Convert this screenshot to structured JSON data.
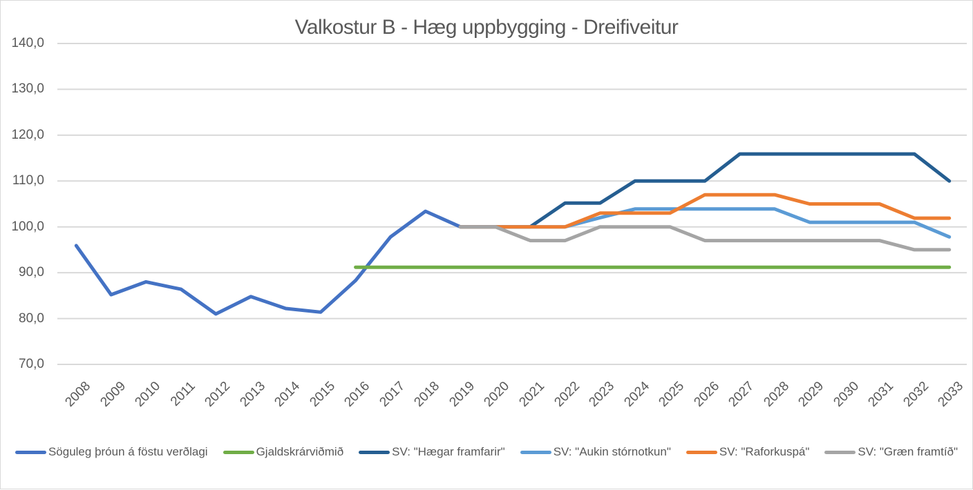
{
  "chart_data": {
    "type": "line",
    "title": "Valkostur B - Hæg uppbygging - Dreifiveitur",
    "x_categories": [
      "2008",
      "2009",
      "2010",
      "2011",
      "2012",
      "2013",
      "2014",
      "2015",
      "2016",
      "2017",
      "2018",
      "2019",
      "2020",
      "2021",
      "2022",
      "2023",
      "2024",
      "2025",
      "2026",
      "2027",
      "2028",
      "2029",
      "2030",
      "2031",
      "2032",
      "2033"
    ],
    "x_start_year": 2008,
    "y_axis": {
      "min": 70,
      "max": 140,
      "step": 10,
      "tick_labels": [
        "70,0",
        "80,0",
        "90,0",
        "100,0",
        "110,0",
        "120,0",
        "130,0",
        "140,0"
      ]
    },
    "grid": "horizontal",
    "legend_position": "bottom",
    "styles": {
      "axis_text_color": "#595959",
      "title_color": "#595959",
      "gridline_color": "#D9D9D9",
      "frame_border_color": "#D9D9D9",
      "background": "#FFFFFF"
    },
    "series": [
      {
        "name": "Söguleg þróun á föstu verðlagi",
        "color": "#4472C4",
        "start_year": 2008,
        "values": [
          95.9,
          85.2,
          88.0,
          86.4,
          81.0,
          84.8,
          82.2,
          81.4,
          88.3,
          97.8,
          103.4,
          100.0
        ]
      },
      {
        "name": "Gjaldskrárviðmið",
        "color": "#70AD47",
        "start_year": 2016,
        "values": [
          91.2,
          91.2,
          91.2,
          91.2,
          91.2,
          91.2,
          91.2,
          91.2,
          91.2,
          91.2,
          91.2,
          91.2,
          91.2,
          91.2,
          91.2,
          91.2,
          91.2,
          91.2
        ]
      },
      {
        "name": "SV: \"Hægar framfarir\"",
        "color": "#255E91",
        "start_year": 2019,
        "values": [
          100.0,
          100.0,
          100.0,
          105.2,
          105.2,
          110.0,
          110.0,
          110.0,
          115.9,
          115.9,
          115.9,
          115.9,
          115.9,
          115.9,
          110.0
        ]
      },
      {
        "name": "SV: \"Aukin stórnotkun\"",
        "color": "#5B9BD5",
        "start_year": 2019,
        "values": [
          100.0,
          100.0,
          100.0,
          100.0,
          102.0,
          103.9,
          103.9,
          103.9,
          103.9,
          103.9,
          101.0,
          101.0,
          101.0,
          101.0,
          97.8
        ]
      },
      {
        "name": "SV: \"Raforkuspá\"",
        "color": "#ED7D31",
        "start_year": 2019,
        "values": [
          100.0,
          100.0,
          100.0,
          100.0,
          103.0,
          103.0,
          103.0,
          107.0,
          107.0,
          107.0,
          105.0,
          105.0,
          105.0,
          101.9,
          101.9
        ]
      },
      {
        "name": "SV: \"Græn framtíð\"",
        "color": "#A5A5A5",
        "start_year": 2019,
        "values": [
          100.0,
          100.0,
          97.0,
          97.0,
          100.0,
          100.0,
          100.0,
          97.0,
          97.0,
          97.0,
          97.0,
          97.0,
          97.0,
          95.0,
          95.0
        ]
      }
    ]
  }
}
